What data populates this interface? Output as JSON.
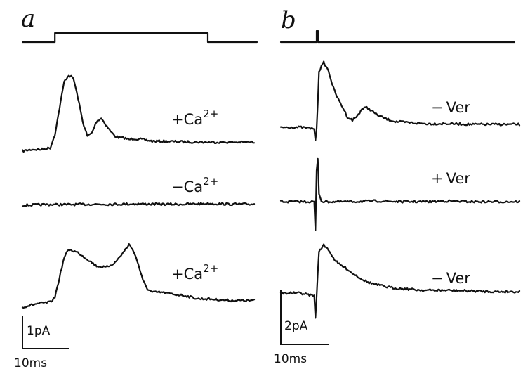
{
  "chart_data": [
    {
      "type": "line",
      "panel": "a",
      "stimulus_protocol": {
        "baseline": 0,
        "step": 1,
        "onset_ms": 7,
        "offset_ms": 40
      },
      "series": [
        {
          "label_sign": "+",
          "label_base": "Ca",
          "label_sup": "2+",
          "x_ms": [
            0,
            2,
            4,
            6,
            7,
            8,
            9,
            10,
            11,
            12,
            13,
            14,
            15,
            16,
            17,
            18,
            19,
            20,
            21,
            22,
            23,
            24,
            26,
            28,
            30,
            35,
            40,
            45,
            50
          ],
          "y_pA": [
            0,
            0.05,
            0.05,
            0.1,
            0.5,
            1.3,
            2.1,
            2.3,
            2.2,
            1.6,
            0.9,
            0.45,
            0.55,
            0.9,
            1.0,
            0.8,
            0.6,
            0.45,
            0.4,
            0.4,
            0.35,
            0.38,
            0.35,
            0.3,
            0.3,
            0.28,
            0.27,
            0.27,
            0.27
          ]
        },
        {
          "label_sign": "−",
          "label_base": "Ca",
          "label_sup": "2+",
          "x_ms": [
            0,
            5,
            10,
            15,
            20,
            25,
            30,
            35,
            40,
            45,
            50
          ],
          "y_pA": [
            0,
            0.02,
            0.02,
            0.03,
            0.03,
            0.04,
            0.03,
            0.03,
            0.05,
            0.03,
            0.03
          ]
        },
        {
          "label_sign": "+",
          "label_base": "Ca",
          "label_sup": "2+",
          "x_ms": [
            0,
            3,
            6,
            7,
            8,
            9,
            10,
            12,
            14,
            16,
            18,
            20,
            22,
            23,
            24,
            25,
            26,
            27,
            28,
            30,
            32,
            35,
            38,
            40,
            45,
            50
          ],
          "y_pA": [
            0,
            0.1,
            0.15,
            0.3,
            0.9,
            1.5,
            1.75,
            1.65,
            1.45,
            1.25,
            1.2,
            1.35,
            1.7,
            1.9,
            1.7,
            1.3,
            0.8,
            0.55,
            0.45,
            0.45,
            0.4,
            0.35,
            0.25,
            0.25,
            0.2,
            0.2
          ]
        }
      ],
      "scale_bar": {
        "y_label": "1pA",
        "x_label": "10ms",
        "y_value_pA": 1,
        "x_value_ms": 10
      }
    },
    {
      "type": "line",
      "panel": "b",
      "stimulus_protocol": {
        "baseline": 0,
        "pulse_at_ms": 7.5
      },
      "series": [
        {
          "label_sign": "−",
          "label_base": "Ver",
          "x_ms": [
            0,
            4,
            7,
            7.3,
            7.6,
            8,
            9,
            10,
            11,
            12,
            13,
            14,
            15,
            16,
            17,
            18,
            19,
            20,
            22,
            24,
            26,
            28,
            30,
            35,
            40,
            45,
            50
          ],
          "y_pA": [
            0,
            0,
            -0.1,
            -1.2,
            0.5,
            4.0,
            4.6,
            4.0,
            2.8,
            2.0,
            1.4,
            0.7,
            0.5,
            0.8,
            1.3,
            1.4,
            1.2,
            0.9,
            0.6,
            0.4,
            0.35,
            0.3,
            0.25,
            0.25,
            0.2,
            0.2,
            0.2
          ]
        },
        {
          "label_sign": "+",
          "label_base": "Ver",
          "x_ms": [
            0,
            4,
            7,
            7.3,
            7.6,
            8,
            8.5,
            9,
            10,
            15,
            20,
            25,
            30,
            35,
            40,
            45,
            50
          ],
          "y_pA": [
            0,
            0,
            0,
            -2.5,
            4.5,
            0.6,
            0.05,
            0,
            0,
            0,
            0.05,
            0,
            0,
            0.05,
            0,
            0,
            0
          ]
        },
        {
          "label_sign": "−",
          "label_base": "Ver",
          "x_ms": [
            0,
            4,
            7,
            7.3,
            7.6,
            8,
            9,
            10,
            11,
            12,
            13,
            14,
            15,
            16,
            17,
            18,
            20,
            22,
            24,
            26,
            28,
            30,
            35,
            40,
            45,
            50
          ],
          "y_pA": [
            0,
            0,
            -0.2,
            -2.0,
            0.5,
            3.0,
            3.4,
            3.1,
            2.5,
            2.1,
            1.9,
            1.7,
            1.4,
            1.2,
            1.0,
            0.8,
            0.6,
            0.45,
            0.35,
            0.3,
            0.25,
            0.2,
            0.2,
            0.15,
            0.1,
            0.1
          ]
        }
      ],
      "scale_bar": {
        "y_label": "2pA",
        "x_label": "10ms",
        "y_value_pA": 2,
        "x_value_ms": 10
      }
    }
  ],
  "panels": [
    {
      "letter": "a"
    },
    {
      "letter": "b"
    }
  ]
}
